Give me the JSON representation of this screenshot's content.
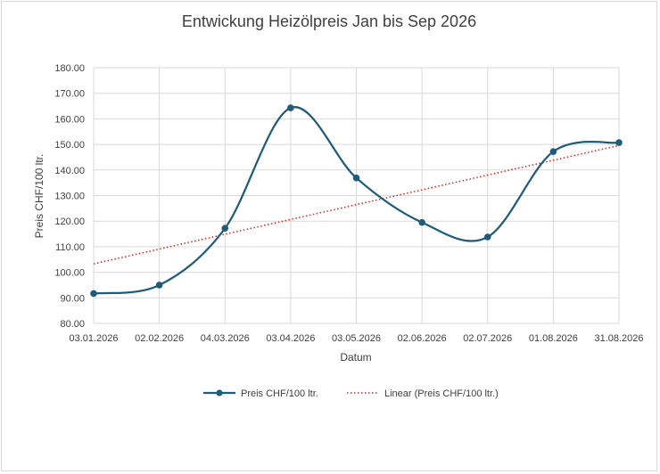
{
  "chart_data": {
    "type": "line",
    "title": "Entwickung Heizölpreis Jan bis Sep 2026",
    "xlabel": "Datum",
    "ylabel": "Preis CHF/100 ltr.",
    "categories": [
      "03.01.2026",
      "02.02.2026",
      "04.03.2026",
      "03.04.2026",
      "03.05.2026",
      "02.06.2026",
      "02.07.2026",
      "01.08.2026",
      "31.08.2026"
    ],
    "y_ticks": [
      "80.00",
      "90.00",
      "100.00",
      "110.00",
      "120.00",
      "130.00",
      "140.00",
      "150.00",
      "160.00",
      "170.00",
      "180.00"
    ],
    "ylim": [
      80,
      180
    ],
    "grid": true,
    "legend_position": "bottom",
    "series": [
      {
        "name": "Preis CHF/100 ltr.",
        "values": [
          91.7,
          95.0,
          117.2,
          164.3,
          136.9,
          119.5,
          113.8,
          147.2,
          150.7
        ],
        "color": "#1f5c7a",
        "style": "smooth-line-with-markers"
      }
    ],
    "trendline": {
      "name": "Linear (Preis CHF/100 ltr.)",
      "type": "linear",
      "start_value": 103.3,
      "end_value": 149.6,
      "color": "#e3201b",
      "style": "dotted"
    }
  }
}
